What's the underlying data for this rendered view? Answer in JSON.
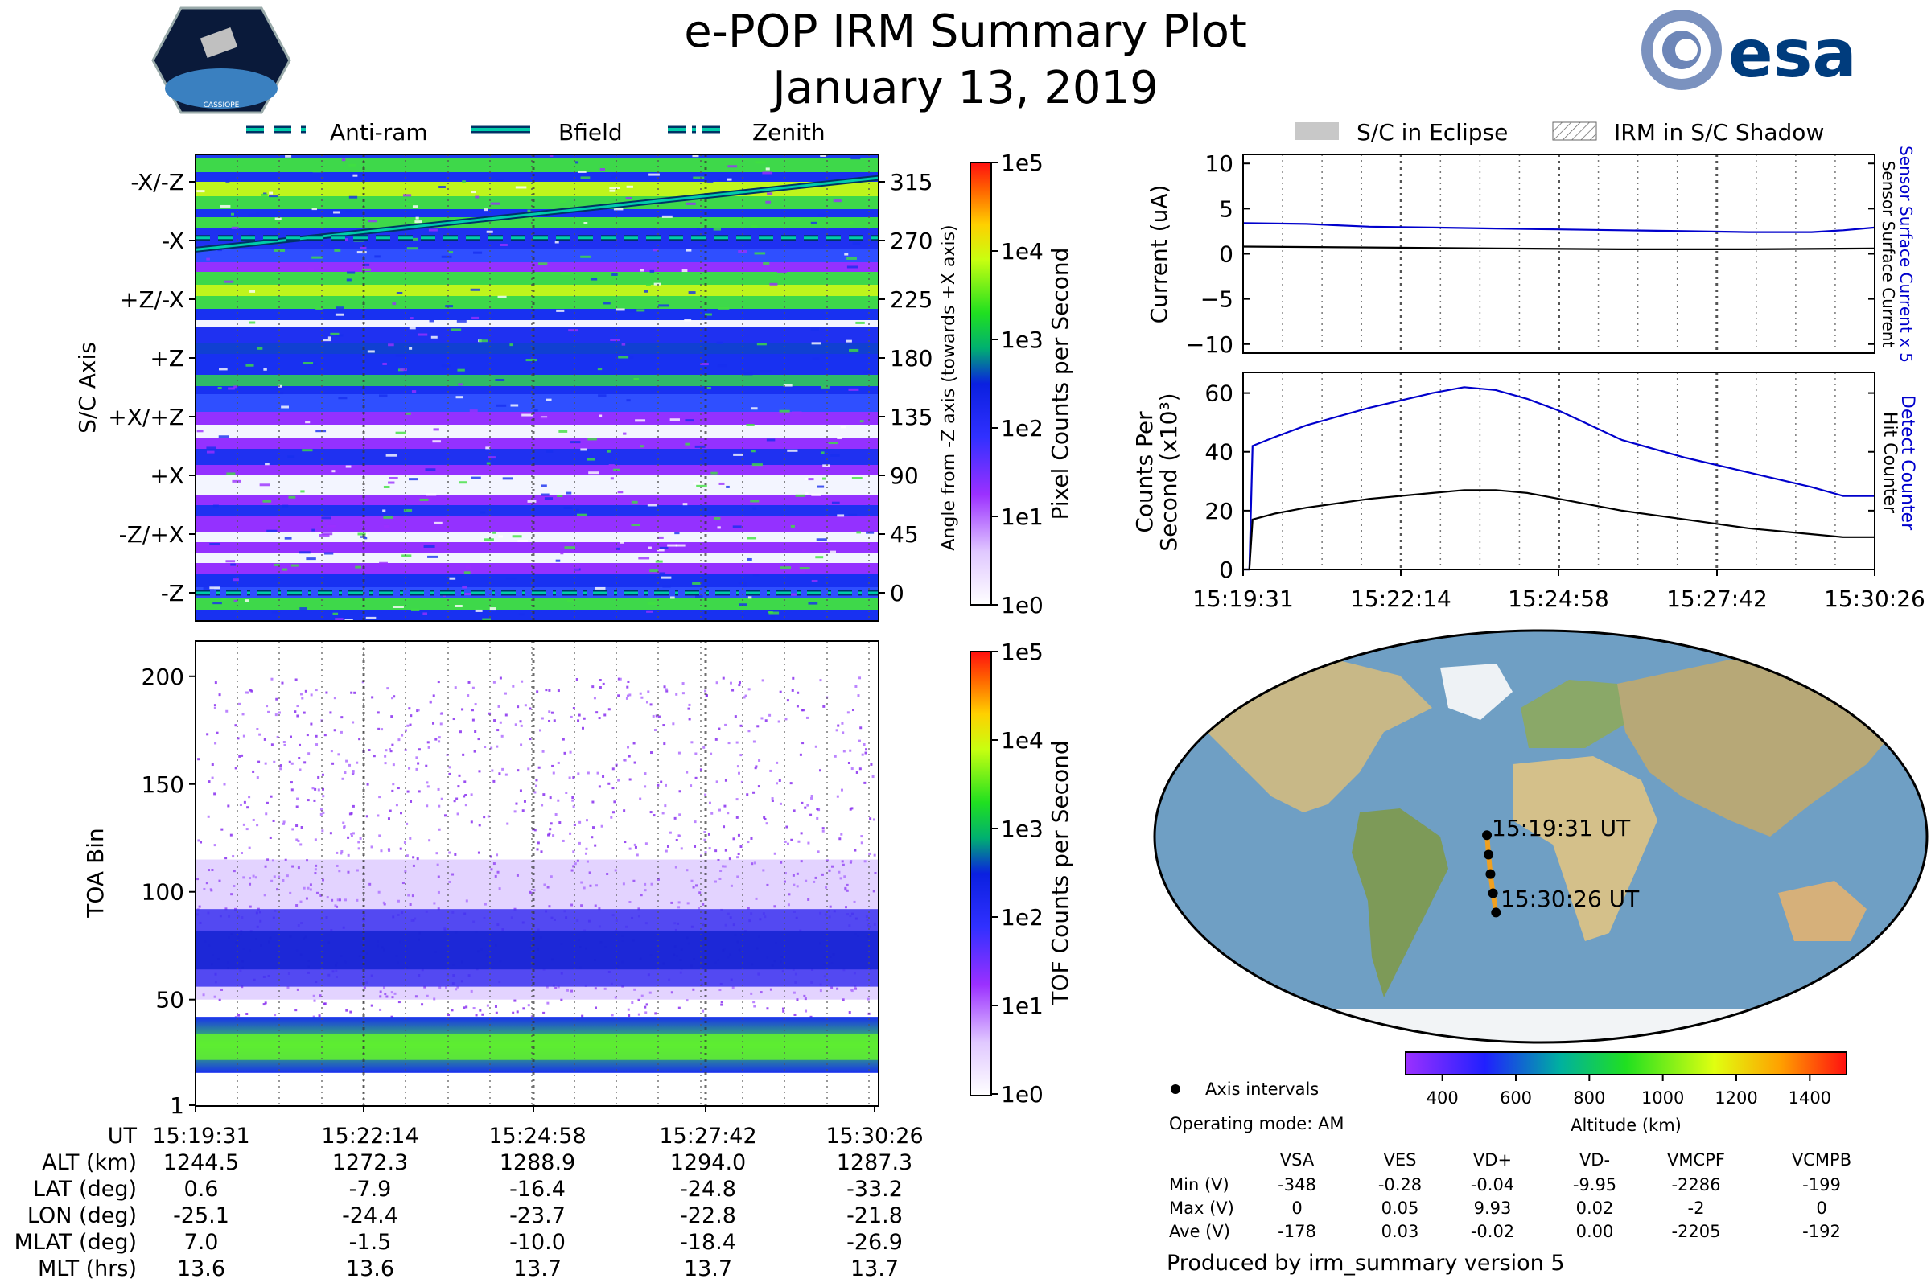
{
  "title": "e-POP IRM Summary Plot",
  "date": "January 13, 2019",
  "logos": {
    "cassiope": "CASSIOPE",
    "esa": "esa"
  },
  "top_legend": [
    {
      "label": "Anti-ram",
      "style": "dashed"
    },
    {
      "label": "Bfield",
      "style": "solid"
    },
    {
      "label": "Zenith",
      "style": "dashdot"
    }
  ],
  "right_legend": [
    {
      "label": "S/C in Eclipse",
      "style": "gray-fill"
    },
    {
      "label": "IRM in S/C Shadow",
      "style": "hatch"
    }
  ],
  "time_ticks": [
    "15:19:31",
    "15:22:14",
    "15:24:58",
    "15:27:42",
    "15:30:26"
  ],
  "colors": {
    "current_blue": "#0000cc",
    "current_black": "#000000",
    "track": "#f0a020",
    "cline": "#00ccaa",
    "ocean": "#6f9fc4"
  },
  "chart_data": [
    {
      "id": "pixel_spectrogram",
      "type": "heatmap",
      "ylabel": "S/C Axis",
      "y_tick_labels": [
        "-X/-Z",
        "-X",
        "+Z/-X",
        "+Z",
        "+X/+Z",
        "+X",
        "-Z/+X",
        "-Z"
      ],
      "right_ylabel": "Angle from -Z axis (towards +X axis)",
      "right_ticks": [
        315,
        270,
        225,
        180,
        135,
        90,
        45,
        0
      ],
      "colorbar_label": "Pixel Counts per Second",
      "colorbar_ticks": [
        "1e5",
        "1e4",
        "1e3",
        "1e2",
        "1e1",
        "1e0"
      ],
      "lines": [
        {
          "name": "Bfield",
          "angle_start": 263,
          "angle_end": 318
        },
        {
          "name": "Anti-ram",
          "angle_start": 272,
          "angle_end": 272
        },
        {
          "name": "Zenith",
          "angle_start": 0,
          "angle_end": 0
        }
      ]
    },
    {
      "id": "toa_spectrogram",
      "type": "heatmap",
      "ylabel": "TOA Bin",
      "y_ticks": [
        200,
        150,
        100,
        50,
        1
      ],
      "ylim": [
        1,
        210
      ],
      "colorbar_label": "TOF Counts per Second",
      "colorbar_ticks": [
        "1e5",
        "1e4",
        "1e3",
        "1e2",
        "1e1",
        "1e0"
      ]
    },
    {
      "id": "current",
      "type": "line",
      "ylabel": "Current (uA)",
      "ylim": [
        -11,
        11
      ],
      "y_ticks": [
        "10",
        "5",
        "0",
        "−5",
        "−10"
      ],
      "right_label_blue": "Sensor Surface Current x 5",
      "right_label_black": "Sensor Surface Current",
      "series": [
        {
          "name": "Sensor Surface Current x 5",
          "color": "blue",
          "x": [
            0,
            0.1,
            0.2,
            0.3,
            0.4,
            0.5,
            0.6,
            0.7,
            0.8,
            0.9,
            0.95,
            1.0
          ],
          "values": [
            3.4,
            3.3,
            3.0,
            2.9,
            2.8,
            2.7,
            2.6,
            2.5,
            2.4,
            2.4,
            2.6,
            2.9
          ]
        },
        {
          "name": "Sensor Surface Current",
          "color": "black",
          "x": [
            0,
            0.2,
            0.4,
            0.6,
            0.8,
            1.0
          ],
          "values": [
            0.8,
            0.7,
            0.6,
            0.5,
            0.5,
            0.6
          ]
        }
      ]
    },
    {
      "id": "counts",
      "type": "line",
      "ylabel": "Counts Per Second (x10³)",
      "ylim": [
        0,
        67
      ],
      "y_ticks": [
        "60",
        "40",
        "20",
        "0"
      ],
      "right_label_blue": "Detect Counter",
      "right_label_black": "Hit Counter",
      "series": [
        {
          "name": "Detect Counter",
          "color": "blue",
          "x": [
            0,
            0.01,
            0.015,
            0.05,
            0.1,
            0.2,
            0.3,
            0.35,
            0.4,
            0.45,
            0.5,
            0.55,
            0.6,
            0.7,
            0.8,
            0.9,
            0.95,
            1.0
          ],
          "values": [
            0,
            0,
            42,
            45,
            49,
            55,
            60,
            62,
            61,
            58,
            54,
            49,
            44,
            38,
            33,
            28,
            25,
            25
          ]
        },
        {
          "name": "Hit Counter",
          "color": "black",
          "x": [
            0,
            0.01,
            0.015,
            0.05,
            0.1,
            0.2,
            0.3,
            0.35,
            0.4,
            0.45,
            0.5,
            0.55,
            0.6,
            0.7,
            0.8,
            0.9,
            0.95,
            1.0
          ],
          "values": [
            0,
            0,
            17,
            19,
            21,
            24,
            26,
            27,
            27,
            26,
            24,
            22,
            20,
            17,
            14,
            12,
            11,
            11
          ]
        }
      ]
    }
  ],
  "map": {
    "start_label": "15:19:31 UT",
    "end_label": "15:30:26 UT",
    "track_lonlat": [
      [
        -25.1,
        0.6
      ],
      [
        -24.4,
        -7.9
      ],
      [
        -23.7,
        -16.4
      ],
      [
        -22.8,
        -24.8
      ],
      [
        -21.8,
        -33.2
      ]
    ]
  },
  "altitude_colorbar": {
    "ticks": [
      "400",
      "600",
      "800",
      "1000",
      "1200",
      "1400"
    ],
    "label": "Altitude (km)"
  },
  "axis_intervals_label": "Axis intervals",
  "operating_mode": "Operating mode: AM",
  "voltage_table": {
    "columns": [
      "VSA",
      "VES",
      "VD+",
      "VD-",
      "VMCPF",
      "VCMPB"
    ],
    "rows": [
      {
        "label": "Min (V)",
        "values": [
          "-348",
          "-0.28",
          "-0.04",
          "-9.95",
          "-2286",
          "-199"
        ]
      },
      {
        "label": "Max (V)",
        "values": [
          "0",
          "0.05",
          "9.93",
          "0.02",
          "-2",
          "0"
        ]
      },
      {
        "label": "Ave (V)",
        "values": [
          "-178",
          "0.03",
          "-0.02",
          "0.00",
          "-2205",
          "-192"
        ]
      }
    ]
  },
  "ephemeris": {
    "rows": [
      {
        "label": "UT",
        "values": [
          "15:19:31",
          "15:22:14",
          "15:24:58",
          "15:27:42",
          "15:30:26"
        ]
      },
      {
        "label": "ALT (km)",
        "values": [
          "1244.5",
          "1272.3",
          "1288.9",
          "1294.0",
          "1287.3"
        ]
      },
      {
        "label": "LAT (deg)",
        "values": [
          "0.6",
          "-7.9",
          "-16.4",
          "-24.8",
          "-33.2"
        ]
      },
      {
        "label": "LON (deg)",
        "values": [
          "-25.1",
          "-24.4",
          "-23.7",
          "-22.8",
          "-21.8"
        ]
      },
      {
        "label": "MLAT (deg)",
        "values": [
          "7.0",
          "-1.5",
          "-10.0",
          "-18.4",
          "-26.9"
        ]
      },
      {
        "label": "MLT (hrs)",
        "values": [
          "13.6",
          "13.6",
          "13.7",
          "13.7",
          "13.7"
        ]
      }
    ]
  },
  "footer": "Produced by irm_summary version 5"
}
